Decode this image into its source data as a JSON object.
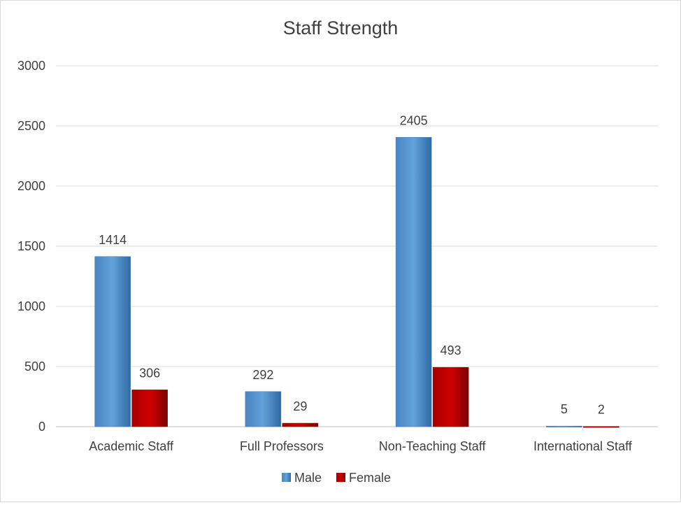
{
  "chart_data": {
    "type": "bar",
    "title": "Staff Strength",
    "categories": [
      "Academic Staff",
      "Full Professors",
      "Non-Teaching Staff",
      "International  Staff"
    ],
    "series": [
      {
        "name": "Male",
        "values": [
          1414,
          292,
          2405,
          5
        ],
        "color": "#5b9bd5"
      },
      {
        "name": "Female",
        "values": [
          306,
          29,
          493,
          2
        ],
        "color": "#c00000"
      }
    ],
    "ylim": [
      0,
      3000
    ],
    "yticks": [
      0,
      500,
      1000,
      1500,
      2000,
      2500,
      3000
    ],
    "grid": true,
    "legend_position": "bottom",
    "data_labels": true
  }
}
